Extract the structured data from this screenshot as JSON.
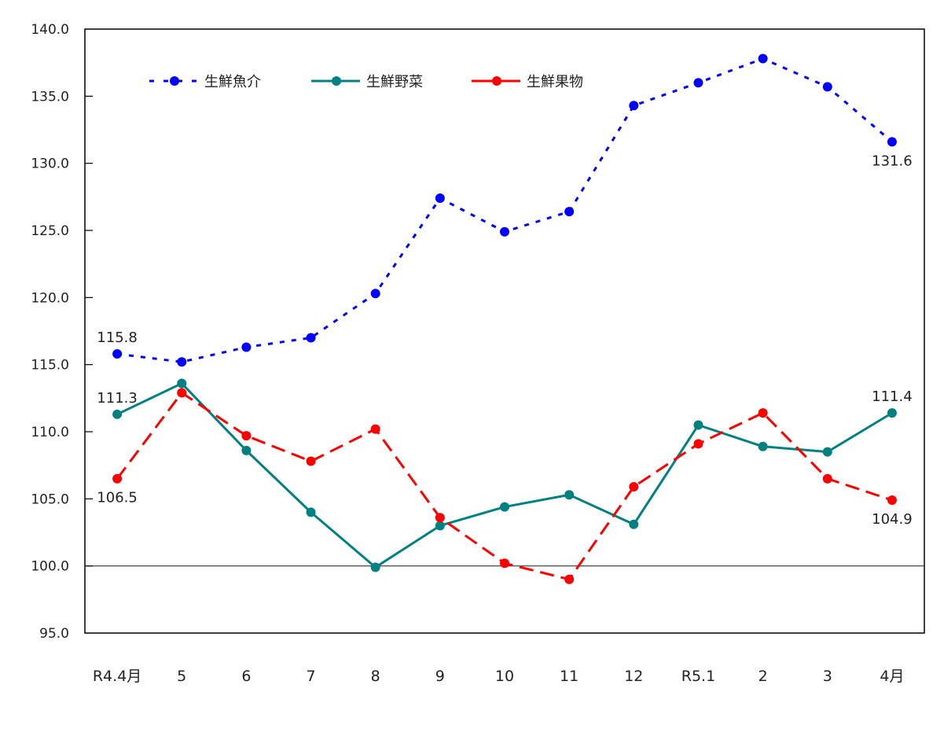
{
  "chart_data": {
    "type": "line",
    "title": "",
    "xlabel": "",
    "ylabel": "",
    "ylim": [
      95.0,
      140.0
    ],
    "yticks": [
      "95.0",
      "100.0",
      "105.0",
      "110.0",
      "115.0",
      "120.0",
      "125.0",
      "130.0",
      "135.0",
      "140.0"
    ],
    "reference_line": 100.0,
    "grid": false,
    "legend_position": "top-left inside",
    "categories": [
      "R4.4月",
      "5",
      "6",
      "7",
      "8",
      "9",
      "10",
      "11",
      "12",
      "R5.1",
      "2",
      "3",
      "4月"
    ],
    "series": [
      {
        "name": "生鮮魚介",
        "color": "#0000FF",
        "line_style": "dotted",
        "values": [
          115.8,
          115.2,
          116.3,
          117.0,
          120.3,
          127.4,
          124.9,
          126.4,
          134.3,
          136.0,
          137.8,
          135.7,
          131.6
        ],
        "labels": [
          {
            "index": 0,
            "text": "115.8",
            "position": "above"
          },
          {
            "index": 12,
            "text": "131.6",
            "position": "below"
          }
        ]
      },
      {
        "name": "生鮮野菜",
        "color": "#008080",
        "line_style": "solid",
        "values": [
          111.3,
          113.6,
          108.6,
          104.0,
          99.9,
          103.0,
          104.4,
          105.3,
          103.1,
          110.5,
          108.9,
          108.5,
          111.4
        ],
        "labels": [
          {
            "index": 0,
            "text": "111.3",
            "position": "above"
          },
          {
            "index": 12,
            "text": "111.4",
            "position": "above"
          }
        ]
      },
      {
        "name": "生鮮果物",
        "color": "#FF0000",
        "line_style": "dashed",
        "values": [
          106.5,
          112.9,
          109.7,
          107.8,
          110.2,
          103.6,
          100.2,
          99.0,
          105.9,
          109.1,
          111.4,
          106.5,
          104.9
        ],
        "labels": [
          {
            "index": 0,
            "text": "106.5",
            "position": "below"
          },
          {
            "index": 12,
            "text": "104.9",
            "position": "below"
          }
        ]
      }
    ]
  }
}
